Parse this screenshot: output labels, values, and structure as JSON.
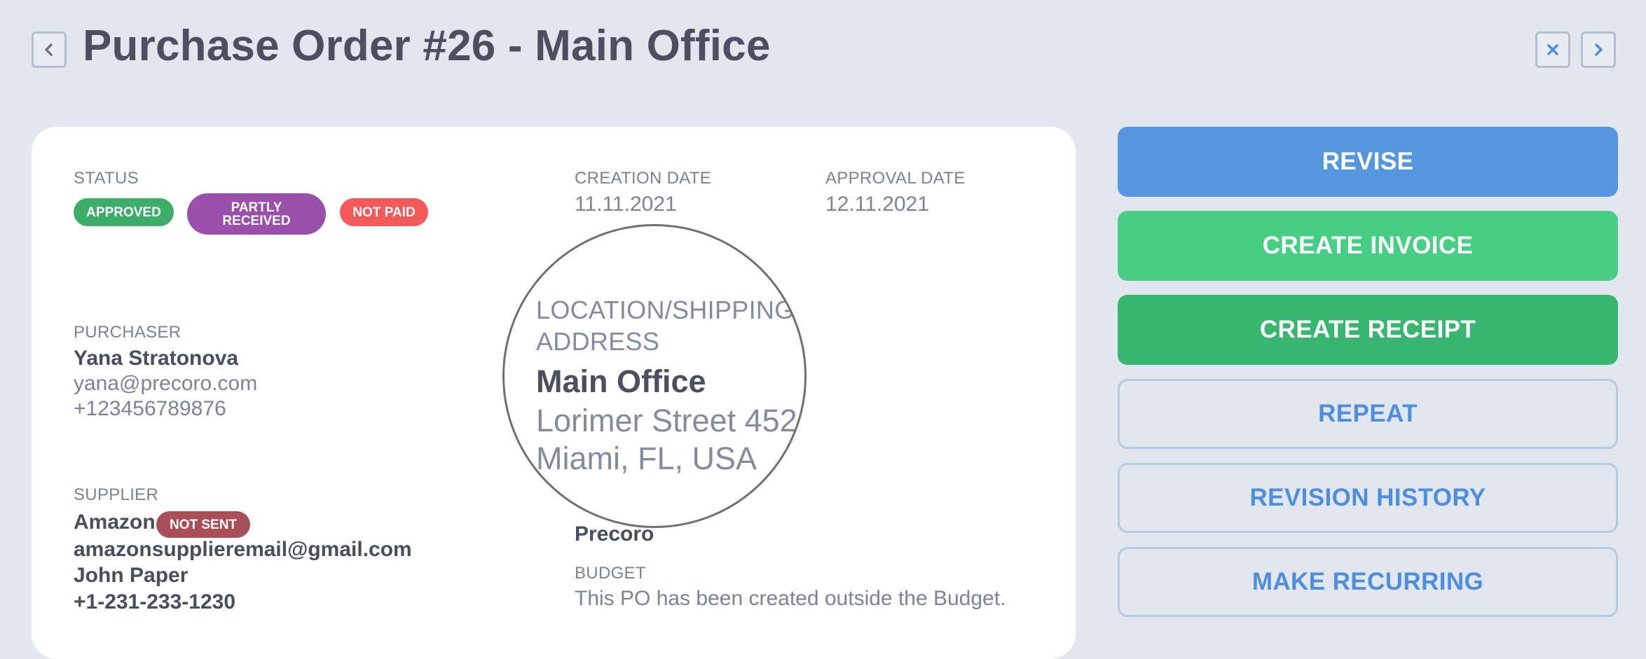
{
  "header": {
    "title": "Purchase Order #26 - Main Office"
  },
  "status": {
    "label": "Status",
    "badges": [
      {
        "text": "Approved",
        "color": "#3dae6a"
      },
      {
        "text": "Partly\nReceived",
        "color": "#9a4fac"
      },
      {
        "text": "Not Paid",
        "color": "#f45a5a"
      }
    ]
  },
  "creation": {
    "label": "Creation Date",
    "value": "11.11.2021"
  },
  "approval": {
    "label": "Approval Date",
    "value": "12.11.2021"
  },
  "purchaser": {
    "label": "Purchaser",
    "name": "Yana Stratonova",
    "email": "yana@precoro.com",
    "phone": "+123456789876"
  },
  "supplier": {
    "label": "Supplier",
    "name": "Amazon",
    "badge": {
      "text": "Not Sent",
      "color": "#a84f58"
    },
    "email": "amazonsupplieremail@gmail.com",
    "contact": "John Paper",
    "phone": "+1-231-233-1230"
  },
  "location": {
    "label": "Location/Shipping Address",
    "name": "Main Office",
    "street": "Lorimer Street 452",
    "city": "Miami, FL, USA"
  },
  "legal_entity": {
    "value": "Precoro"
  },
  "budget": {
    "label": "Budget",
    "value": "This PO has been created outside the Budget."
  },
  "actions": [
    {
      "label": "Revise",
      "style": "solid",
      "color": "#5496e0"
    },
    {
      "label": "Create Invoice",
      "style": "solid",
      "color": "#46cf84"
    },
    {
      "label": "Create Receipt",
      "style": "solid",
      "color": "#38b56e"
    },
    {
      "label": "Repeat",
      "style": "outline"
    },
    {
      "label": "Revision History",
      "style": "outline"
    },
    {
      "label": "Make Recurring",
      "style": "outline"
    }
  ],
  "colors": {
    "background": "#e2e6ee",
    "card": "#ffffff",
    "title": "#4b4f5f",
    "accent_blue": "#4d8fdc"
  }
}
